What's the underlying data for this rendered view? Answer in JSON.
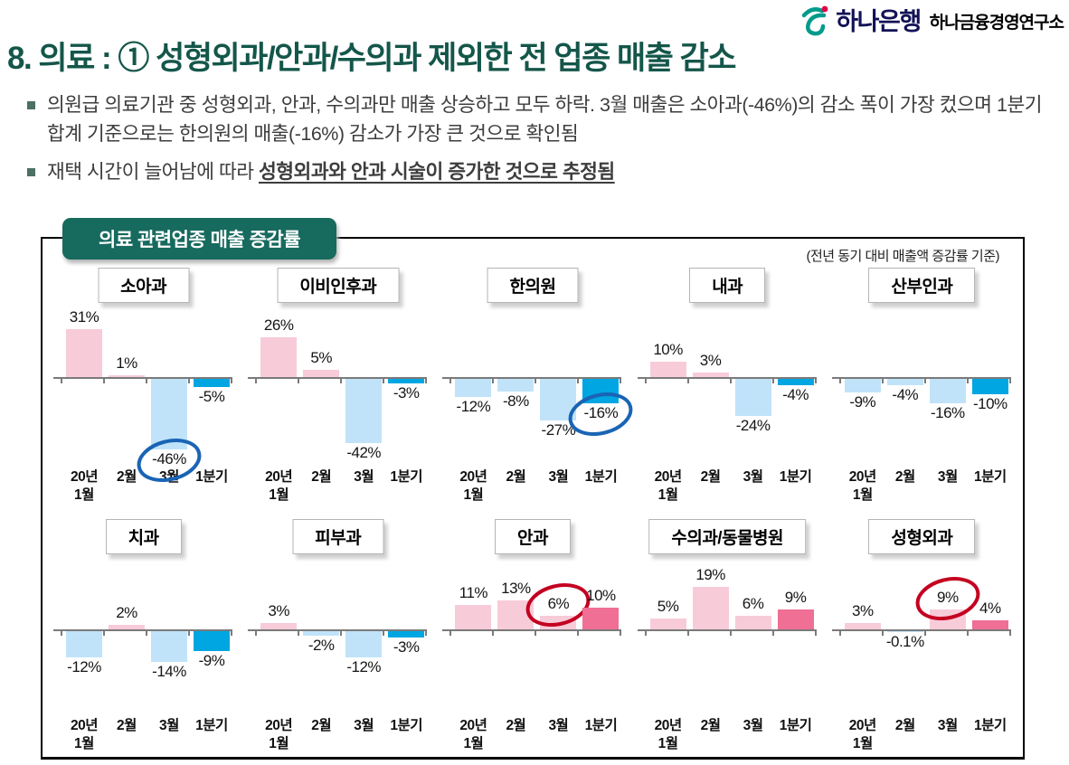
{
  "logo": {
    "bank": "하나은행",
    "institute": "하나금융경영연구소",
    "symbol_teal": "#009b8c",
    "symbol_red": "#e30045"
  },
  "page_title": "8. 의료 : ① 성형외과/안과/수의과 제외한 전 업종 매출 감소",
  "bullets": [
    {
      "text": "의원급 의료기관 중 성형외과, 안과, 수의과만 매출 상승하고 모두 하락. 3월 매출은 소아과(-46%)의 감소 폭이 가장 컸으며 1분기 합계 기준으로는 한의원의 매출(-16%) 감소가 가장 큰 것으로 확인됨",
      "emphasis": ""
    },
    {
      "text": "재택 시간이 늘어남에 따라 ",
      "emphasis": "성형외과와 안과 시술이 증가한 것으로 추정됨"
    }
  ],
  "panel": {
    "title": "의료 관련업종 매출 증감률",
    "note": "(전년 동기 대비 매출액 증감률 기준)"
  },
  "colors": {
    "positive": "#f8cbd9",
    "positive_q1": "#ef6f95",
    "negative": "#c0e3f9",
    "negative_q1": "#00a6e2",
    "annotation_blue": "#1a64b5",
    "annotation_red": "#c40020",
    "panel_teal": "#176a5e",
    "title_teal": "#14564a"
  },
  "chart_data": {
    "type": "bar",
    "unit": "%",
    "note": "전년 동기 대비 매출액 증감률 기준",
    "categories": [
      "20년\n1월",
      "2월",
      "3월",
      "1분기"
    ],
    "charts": [
      {
        "name": "소아과",
        "values": [
          31,
          1,
          -46,
          -5
        ],
        "labels": [
          "31%",
          "1%",
          "-46%",
          "-5%"
        ],
        "circled": 2,
        "circle_color": "blue"
      },
      {
        "name": "이비인후과",
        "values": [
          26,
          5,
          -42,
          -3
        ],
        "labels": [
          "26%",
          "5%",
          "-42%",
          "-3%"
        ]
      },
      {
        "name": "한의원",
        "values": [
          -12,
          -8,
          -27,
          -16
        ],
        "labels": [
          "-12%",
          "-8%",
          "-27%",
          "-16%"
        ],
        "circled": 3,
        "circle_color": "blue"
      },
      {
        "name": "내과",
        "values": [
          10,
          3,
          -24,
          -4
        ],
        "labels": [
          "10%",
          "3%",
          "-24%",
          "-4%"
        ]
      },
      {
        "name": "산부인과",
        "values": [
          -9,
          -4,
          -16,
          -10
        ],
        "labels": [
          "-9%",
          "-4%",
          "-16%",
          "-10%"
        ]
      },
      {
        "name": "치과",
        "values": [
          -12,
          2,
          -14,
          -9
        ],
        "labels": [
          "-12%",
          "2%",
          "-14%",
          "-9%"
        ]
      },
      {
        "name": "피부과",
        "values": [
          3,
          -2,
          -12,
          -3
        ],
        "labels": [
          "3%",
          "-2%",
          "-12%",
          "-3%"
        ]
      },
      {
        "name": "안과",
        "values": [
          11,
          13,
          6,
          10
        ],
        "labels": [
          "11%",
          "13%",
          "6%",
          "10%"
        ],
        "circled": 2,
        "circle_color": "red"
      },
      {
        "name": "수의과/동물병원",
        "values": [
          5,
          19,
          6,
          9
        ],
        "labels": [
          "5%",
          "19%",
          "6%",
          "9%"
        ]
      },
      {
        "name": "성형외과",
        "values": [
          3,
          -0.1,
          9,
          4
        ],
        "labels": [
          "3%",
          "-0.1%",
          "9%",
          "4%"
        ],
        "circled": 2,
        "circle_color": "red"
      }
    ]
  }
}
